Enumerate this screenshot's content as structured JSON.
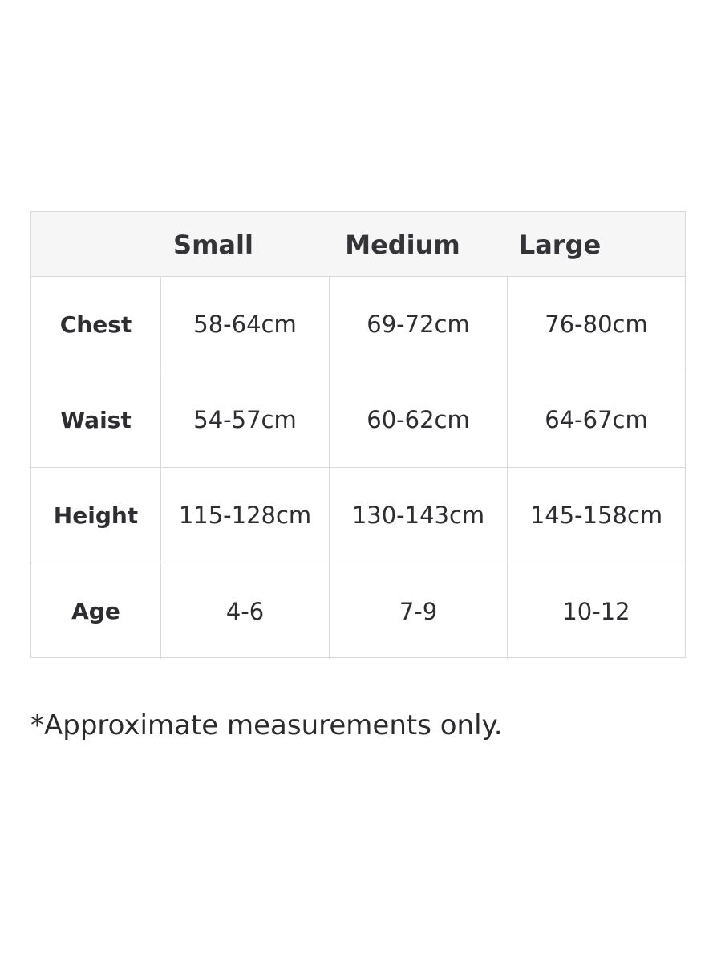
{
  "table": {
    "columns": [
      "Small",
      "Medium",
      "Large"
    ],
    "rows": [
      {
        "label": "Chest",
        "values": [
          "58-64cm",
          "69-72cm",
          "76-80cm"
        ]
      },
      {
        "label": "Waist",
        "values": [
          "54-57cm",
          "60-62cm",
          "64-67cm"
        ]
      },
      {
        "label": "Height",
        "values": [
          "115-128cm",
          "130-143cm",
          "145-158cm"
        ]
      },
      {
        "label": "Age",
        "values": [
          "4-6",
          "7-9",
          "10-12"
        ]
      }
    ]
  },
  "footnote": "*Approximate measurements only."
}
